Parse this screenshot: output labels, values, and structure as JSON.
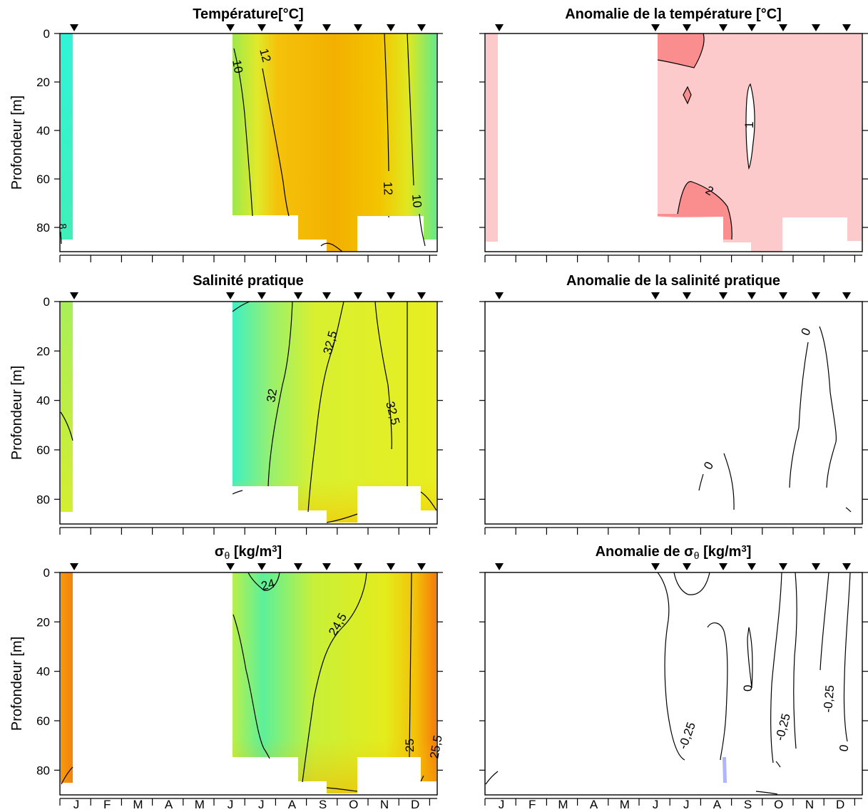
{
  "months": [
    "J",
    "F",
    "M",
    "A",
    "M",
    "J",
    "J",
    "A",
    "S",
    "O",
    "N",
    "D"
  ],
  "y_axis_label": "Profondeur [m]",
  "y_ticks": [
    0,
    20,
    40,
    60,
    80
  ],
  "panels": [
    {
      "title_parts": [
        {
          "t": "Température[°C]"
        }
      ]
    },
    {
      "title_parts": [
        {
          "t": "Anomalie de la température [°C]"
        }
      ]
    },
    {
      "title_parts": [
        {
          "t": "Salinité pratique"
        }
      ]
    },
    {
      "title_parts": [
        {
          "t": "Anomalie de la salinité pratique"
        }
      ]
    },
    {
      "title_parts": [
        {
          "t": "σ"
        },
        {
          "t": "θ",
          "sub": true
        },
        {
          "t": " [kg/m"
        },
        {
          "t": "3",
          "sup": true
        },
        {
          "t": "]"
        }
      ]
    },
    {
      "title_parts": [
        {
          "t": "Anomalie de σ"
        },
        {
          "t": "θ",
          "sub": true
        },
        {
          "t": "  [kg/m"
        },
        {
          "t": "3",
          "sup": true
        },
        {
          "t": "]"
        }
      ]
    }
  ],
  "contour_labels": {
    "temperature": [
      "10",
      "12",
      "12",
      "10",
      "8"
    ],
    "temperature_anomaly": [
      "1",
      "2"
    ],
    "salinity": [
      "32",
      "32,5",
      "32,5"
    ],
    "salinity_anomaly": [
      "0",
      "0"
    ],
    "density": [
      "24",
      "24,5",
      "25",
      "25,5"
    ],
    "density_anomaly": [
      "0",
      "-0,25",
      "-0,25",
      "-0,25",
      "0"
    ]
  },
  "colors": {
    "temperature_warm": "#f2ae00",
    "temperature_cool": "#35f5c8",
    "anomaly_positive": "#fccaca",
    "anomaly_strong": "#fa8e8e",
    "anomaly_negative": "#b0b4ff",
    "density_high": "#f5850a",
    "density_low": "#3ff0ae"
  },
  "chart_data": [
    {
      "type": "heatmap",
      "title": "Température[°C]",
      "ylabel": "Profondeur [m]",
      "xlabel": "",
      "categories": [
        "J",
        "F",
        "M",
        "A",
        "M",
        "J",
        "J",
        "A",
        "S",
        "O",
        "N",
        "D"
      ],
      "ylim": [
        90,
        0
      ],
      "sample_months": [
        "Jan",
        "Jun",
        "Jul",
        "Aug",
        "Sep",
        "Oct",
        "Nov",
        "Dec"
      ],
      "contour_levels": [
        8,
        10,
        12
      ],
      "max_depth_m": [
        85,
        75,
        75,
        85,
        90,
        75,
        75,
        85
      ]
    },
    {
      "type": "heatmap",
      "title": "Anomalie de la température [°C]",
      "ylabel": "",
      "categories": [
        "J",
        "F",
        "M",
        "A",
        "M",
        "J",
        "J",
        "A",
        "S",
        "O",
        "N",
        "D"
      ],
      "ylim": [
        90,
        0
      ],
      "contour_levels": [
        1,
        2
      ]
    },
    {
      "type": "heatmap",
      "title": "Salinité pratique",
      "ylabel": "Profondeur [m]",
      "categories": [
        "J",
        "F",
        "M",
        "A",
        "M",
        "J",
        "J",
        "A",
        "S",
        "O",
        "N",
        "D"
      ],
      "ylim": [
        90,
        0
      ],
      "contour_levels": [
        32,
        32.5
      ]
    },
    {
      "type": "heatmap",
      "title": "Anomalie de la salinité pratique",
      "ylabel": "",
      "categories": [
        "J",
        "F",
        "M",
        "A",
        "M",
        "J",
        "J",
        "A",
        "S",
        "O",
        "N",
        "D"
      ],
      "ylim": [
        90,
        0
      ],
      "contour_levels": [
        0
      ]
    },
    {
      "type": "heatmap",
      "title": "σθ [kg/m3]",
      "ylabel": "Profondeur [m]",
      "categories": [
        "J",
        "F",
        "M",
        "A",
        "M",
        "J",
        "J",
        "A",
        "S",
        "O",
        "N",
        "D"
      ],
      "ylim": [
        90,
        0
      ],
      "contour_levels": [
        24,
        24.5,
        25,
        25.5
      ]
    },
    {
      "type": "heatmap",
      "title": "Anomalie de σθ [kg/m3]",
      "ylabel": "",
      "categories": [
        "J",
        "F",
        "M",
        "A",
        "M",
        "J",
        "J",
        "A",
        "S",
        "O",
        "N",
        "D"
      ],
      "ylim": [
        90,
        0
      ],
      "contour_levels": [
        -0.25,
        0
      ]
    }
  ]
}
